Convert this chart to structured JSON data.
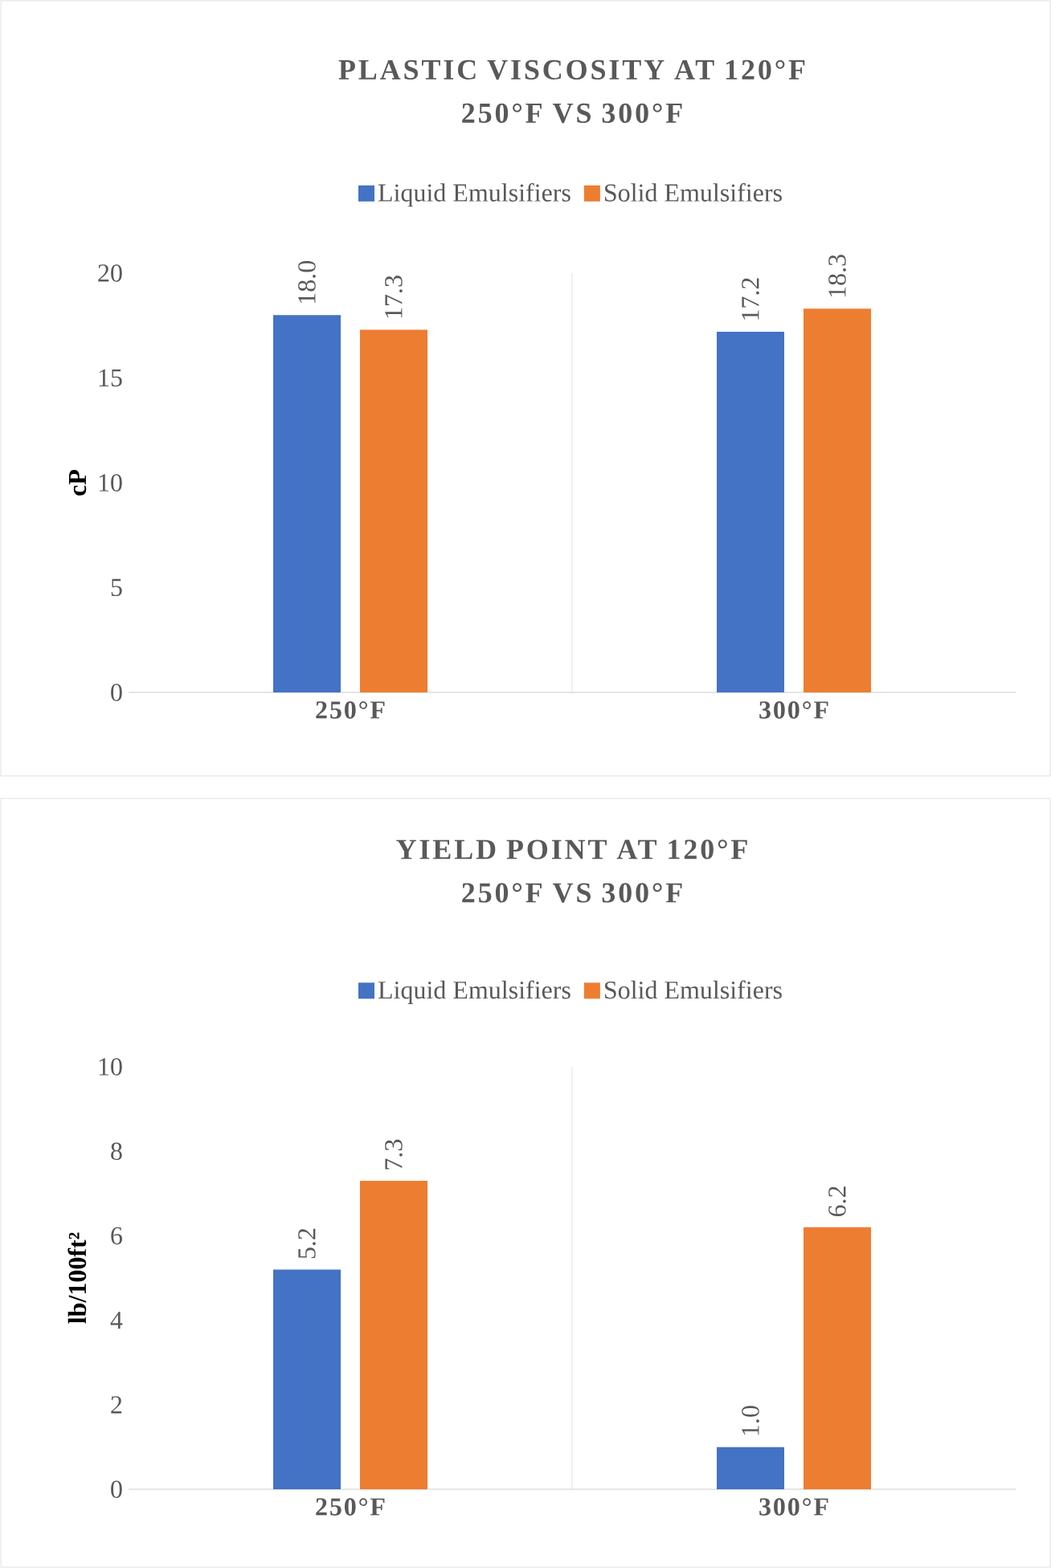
{
  "chart_data": [
    {
      "type": "bar",
      "title": "PLASTIC VISCOSITY AT 120°F",
      "subtitle": "250°F VS 300°F",
      "ylabel": "cP",
      "categories": [
        "250°F",
        "300°F"
      ],
      "series": [
        {
          "name": "Liquid Emulsifiers",
          "color": "#4472c4",
          "values": [
            18.0,
            17.2
          ],
          "value_labels": [
            "18.0",
            "17.2"
          ]
        },
        {
          "name": "Solid Emulsifiers",
          "color": "#ed7d31",
          "values": [
            17.3,
            18.3
          ],
          "value_labels": [
            "17.3",
            "18.3"
          ]
        }
      ],
      "ylim": [
        0,
        20
      ],
      "yticks": [
        0,
        5,
        10,
        15,
        20
      ],
      "grid": "x",
      "legend": "top"
    },
    {
      "type": "bar",
      "title": "YIELD POINT AT 120°F",
      "subtitle": "250°F VS 300°F",
      "ylabel": "lb/100ft²",
      "categories": [
        "250°F",
        "300°F"
      ],
      "series": [
        {
          "name": "Liquid Emulsifiers",
          "color": "#4472c4",
          "values": [
            5.2,
            1.0
          ],
          "value_labels": [
            "5.2",
            "1.0"
          ]
        },
        {
          "name": "Solid Emulsifiers",
          "color": "#ed7d31",
          "values": [
            7.3,
            6.2
          ],
          "value_labels": [
            "7.3",
            "6.2"
          ]
        }
      ],
      "ylim": [
        0,
        10
      ],
      "yticks": [
        0,
        2,
        4,
        6,
        8,
        10
      ],
      "grid": "x",
      "legend": "top"
    }
  ]
}
